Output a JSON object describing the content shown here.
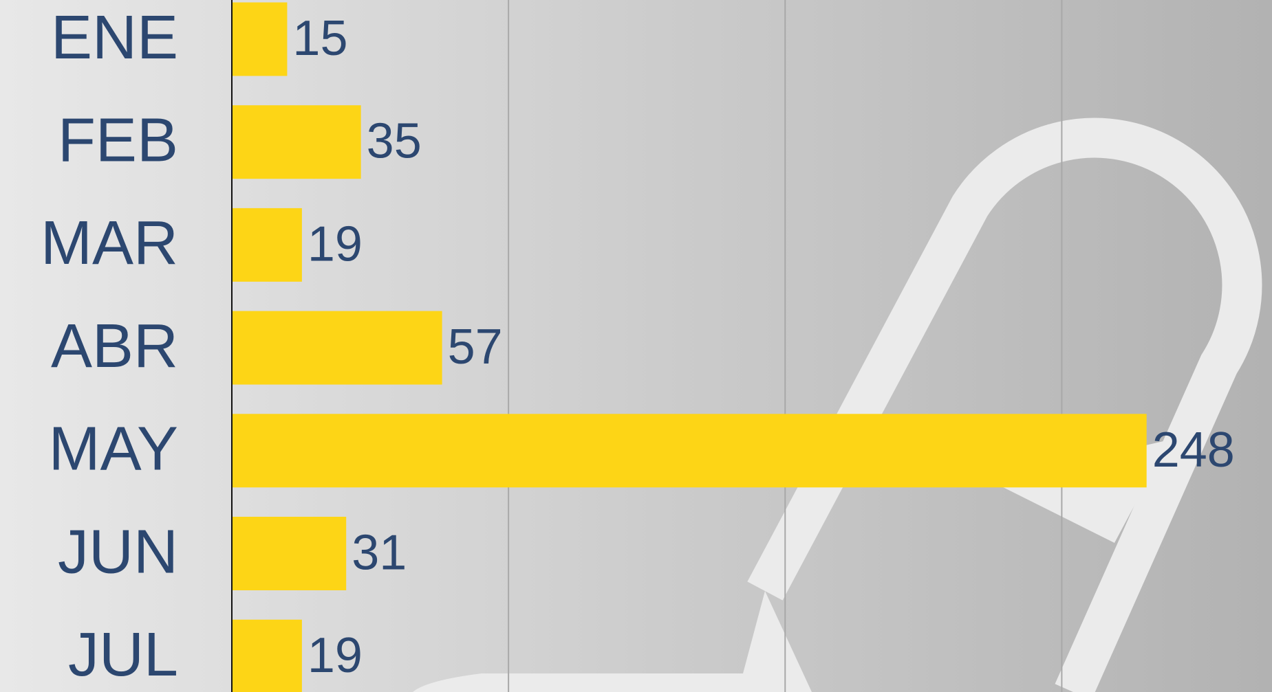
{
  "chart_data": {
    "type": "bar",
    "orientation": "horizontal",
    "categories": [
      "ENE",
      "FEB",
      "MAR",
      "ABR",
      "MAY",
      "JUN",
      "JUL"
    ],
    "values": [
      15,
      35,
      19,
      57,
      248,
      31,
      19
    ],
    "color": "#fdd516",
    "xlim": [
      0,
      282
    ],
    "xticks": [
      0,
      75,
      150,
      225
    ],
    "grid": true
  }
}
